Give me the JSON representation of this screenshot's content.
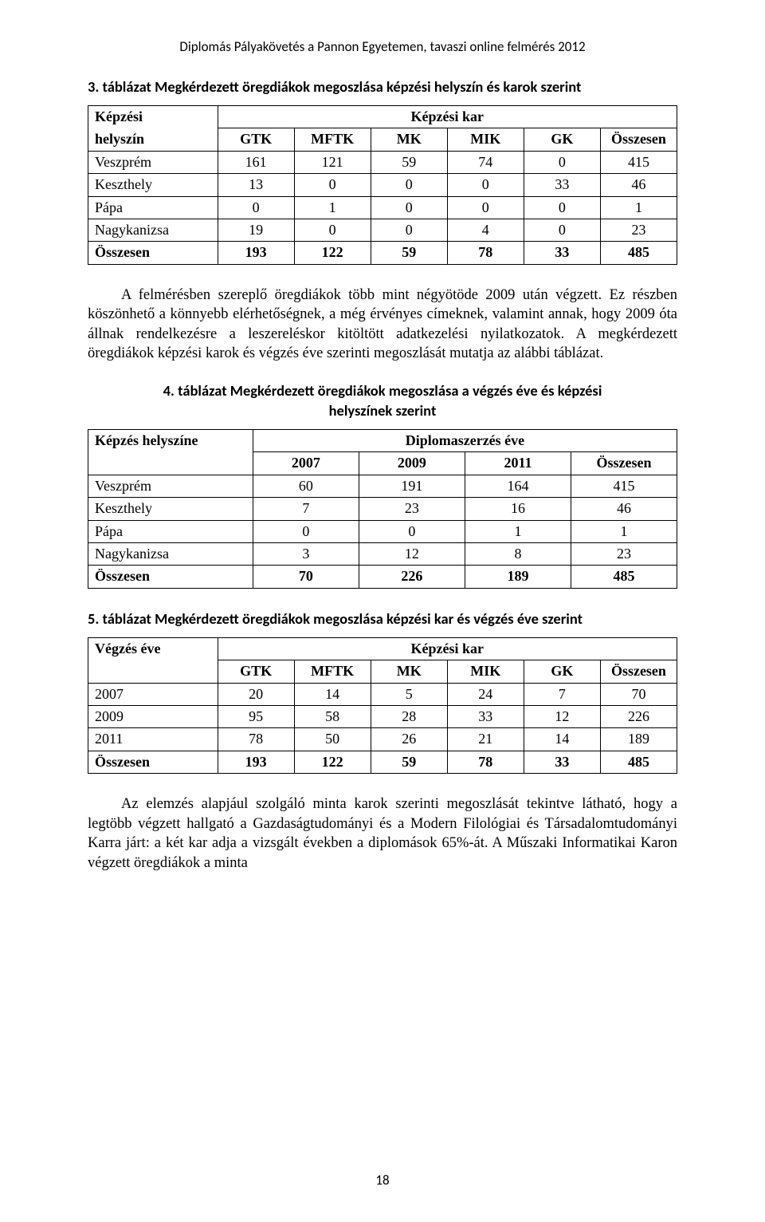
{
  "running_header": "Diplomás Pályakövetés a Pannon Egyetemen, tavaszi online felmérés 2012",
  "t1": {
    "title": "3. táblázat Megkérdezett öregdiákok megoszlása képzési helyszín és karok szerint",
    "corner_top": "Képzési",
    "corner_bottom": "helyszín",
    "spanner": "Képzési kar",
    "cols": [
      "GTK",
      "MFTK",
      "MK",
      "MIK",
      "GK",
      "Összesen"
    ],
    "rows": [
      {
        "label": "Veszprém",
        "v": [
          "161",
          "121",
          "59",
          "74",
          "0",
          "415"
        ]
      },
      {
        "label": "Keszthely",
        "v": [
          "13",
          "0",
          "0",
          "0",
          "33",
          "46"
        ]
      },
      {
        "label": "Pápa",
        "v": [
          "0",
          "1",
          "0",
          "0",
          "0",
          "1"
        ]
      },
      {
        "label": "Nagykanizsa",
        "v": [
          "19",
          "0",
          "0",
          "4",
          "0",
          "23"
        ]
      }
    ],
    "total": {
      "label": "Összesen",
      "v": [
        "193",
        "122",
        "59",
        "78",
        "33",
        "485"
      ]
    }
  },
  "para1": "A felmérésben szereplő öregdiákok több mint négyötöde 2009 után végzett. Ez részben köszönhető a könnyebb elérhetőségnek, a még érvényes címeknek, valamint annak, hogy 2009 óta állnak rendelkezésre a leszereléskor kitöltött adatkezelési nyilatkozatok. A megkérdezett öregdiákok képzési karok és végzés éve szerinti megoszlását mutatja az alábbi táblázat.",
  "t2": {
    "title_l1": "4. táblázat Megkérdezett öregdiákok megoszlása a végzés éve és képzési",
    "title_l2": "helyszínek szerint",
    "corner": "Képzés helyszíne",
    "spanner": "Diplomaszerzés éve",
    "cols": [
      "2007",
      "2009",
      "2011",
      "Összesen"
    ],
    "rows": [
      {
        "label": "Veszprém",
        "v": [
          "60",
          "191",
          "164",
          "415"
        ]
      },
      {
        "label": "Keszthely",
        "v": [
          "7",
          "23",
          "16",
          "46"
        ]
      },
      {
        "label": "Pápa",
        "v": [
          "0",
          "0",
          "1",
          "1"
        ]
      },
      {
        "label": "Nagykanizsa",
        "v": [
          "3",
          "12",
          "8",
          "23"
        ]
      }
    ],
    "total": {
      "label": "Összesen",
      "v": [
        "70",
        "226",
        "189",
        "485"
      ]
    }
  },
  "t3": {
    "title": "5. táblázat Megkérdezett öregdiákok megoszlása képzési kar és végzés éve szerint",
    "corner": "Végzés éve",
    "spanner": "Képzési kar",
    "cols": [
      "GTK",
      "MFTK",
      "MK",
      "MIK",
      "GK",
      "Összesen"
    ],
    "rows": [
      {
        "label": "2007",
        "v": [
          "20",
          "14",
          "5",
          "24",
          "7",
          "70"
        ]
      },
      {
        "label": "2009",
        "v": [
          "95",
          "58",
          "28",
          "33",
          "12",
          "226"
        ]
      },
      {
        "label": "2011",
        "v": [
          "78",
          "50",
          "26",
          "21",
          "14",
          "189"
        ]
      }
    ],
    "total": {
      "label": "Összesen",
      "v": [
        "193",
        "122",
        "59",
        "78",
        "33",
        "485"
      ]
    }
  },
  "para2": "Az elemzés alapjául szolgáló minta karok szerinti megoszlását tekintve látható, hogy a legtöbb végzett hallgató a Gazdaságtudományi és a Modern Filológiai és Társadalomtudományi Karra járt: a két kar adja a vizsgált években a diplomások 65%-át. A Műszaki Informatikai Karon végzett öregdiákok a minta",
  "page_number": "18"
}
